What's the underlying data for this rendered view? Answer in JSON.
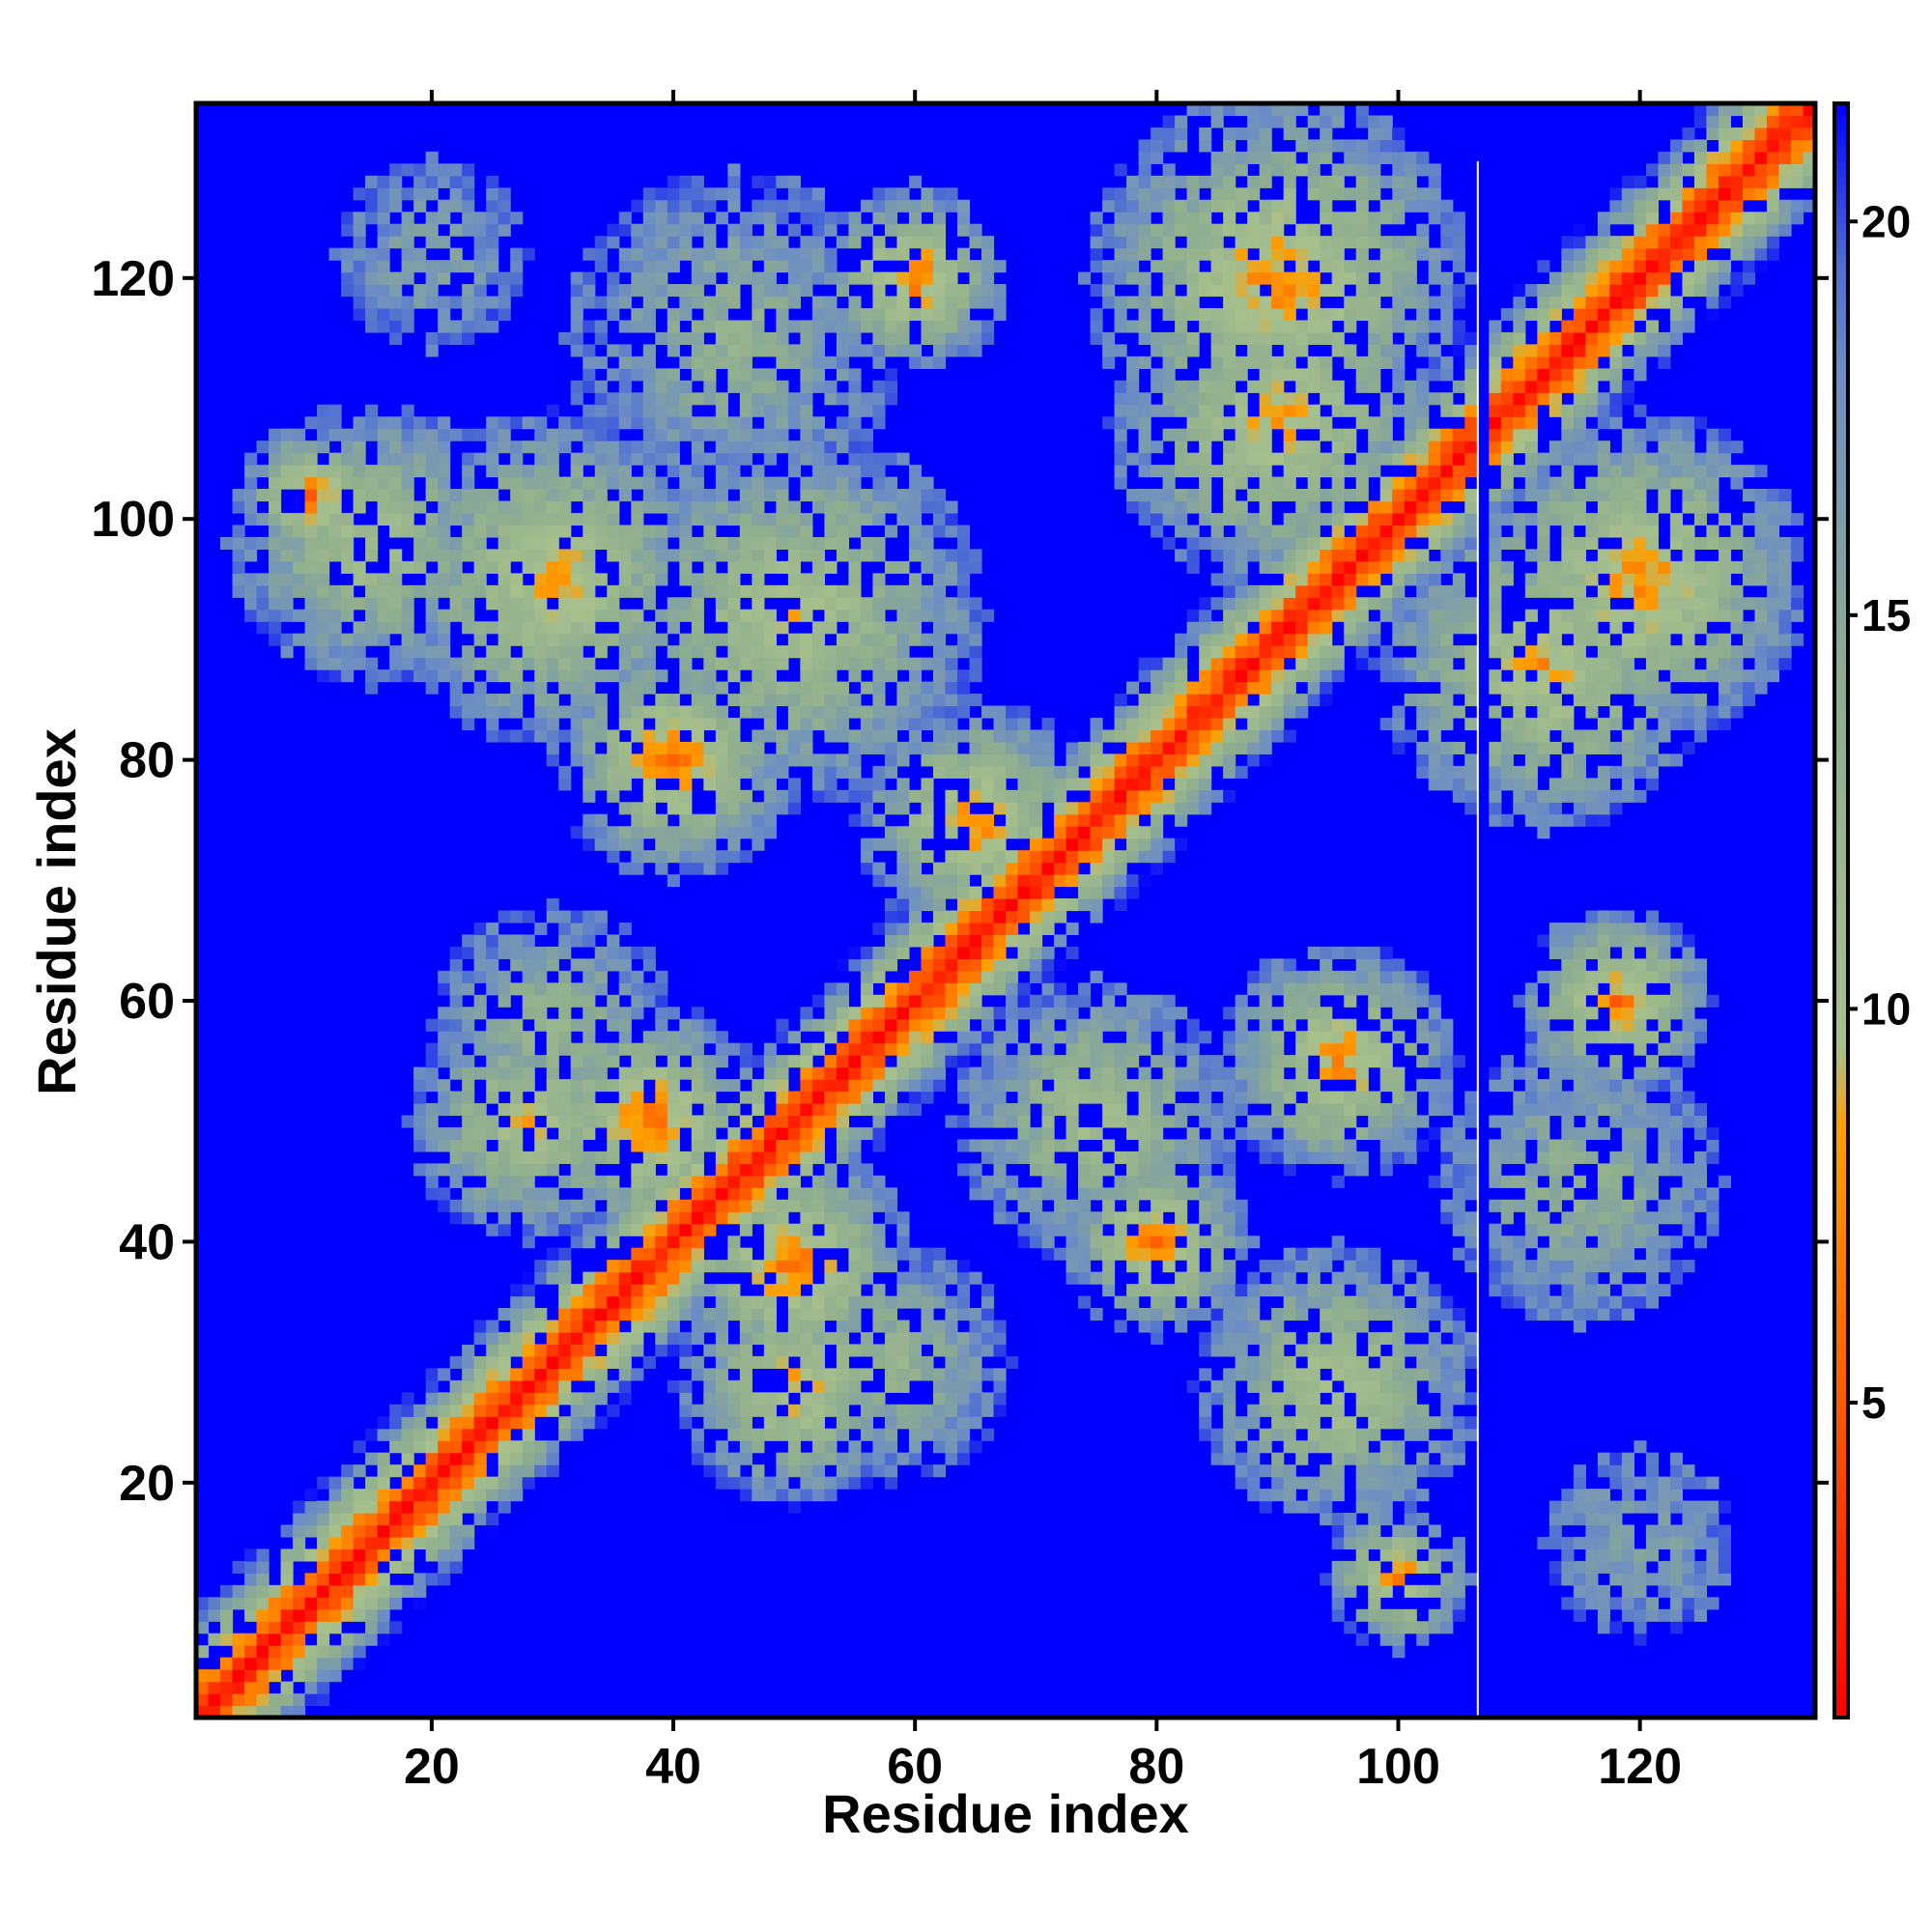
{
  "chart_data": {
    "type": "heatmap",
    "title": "",
    "xlabel": "Residue index",
    "ylabel": "Residue index",
    "xlim": [
      1,
      134
    ],
    "ylim": [
      1,
      134
    ],
    "x_ticks": [
      "20",
      "40",
      "60",
      "80",
      "100",
      "120"
    ],
    "y_ticks": [
      "20",
      "40",
      "60",
      "80",
      "100",
      "120"
    ],
    "colorbar": {
      "range": [
        1,
        21.5
      ],
      "ticks": [
        "5",
        "10",
        "15",
        "20"
      ],
      "stops": [
        {
          "value": 1,
          "color": "#ff0000"
        },
        {
          "value": 5,
          "color": "#ff5a00"
        },
        {
          "value": 8.5,
          "color": "#ff9f00"
        },
        {
          "value": 9.5,
          "color": "#a7c08c"
        },
        {
          "value": 14,
          "color": "#8fae8f"
        },
        {
          "value": 18,
          "color": "#6e8fc2"
        },
        {
          "value": 19.5,
          "color": "#4c6cd4"
        },
        {
          "value": 21.5,
          "color": "#0000ff"
        }
      ]
    },
    "diagonal_band": {
      "value_at_diagonal": 1.5,
      "increase_per_residue": 2.2
    },
    "background_value": 21.5,
    "contact_regions": [
      {
        "i": 10,
        "j": 102,
        "min_value": 6,
        "radius": 6
      },
      {
        "i": 15,
        "j": 98,
        "min_value": 10,
        "radius": 12
      },
      {
        "i": 30,
        "j": 95,
        "min_value": 8,
        "radius": 14
      },
      {
        "i": 40,
        "j": 80,
        "min_value": 6,
        "radius": 10
      },
      {
        "i": 50,
        "j": 92,
        "min_value": 9,
        "radius": 16
      },
      {
        "i": 60,
        "j": 120,
        "min_value": 6,
        "radius": 8
      },
      {
        "i": 45,
        "j": 115,
        "min_value": 13,
        "radius": 14
      },
      {
        "i": 20,
        "j": 122,
        "min_value": 15,
        "radius": 8
      },
      {
        "i": 38,
        "j": 50,
        "min_value": 6,
        "radius": 10
      },
      {
        "i": 30,
        "j": 58,
        "min_value": 12,
        "radius": 10
      },
      {
        "i": 28,
        "j": 50,
        "min_value": 9,
        "radius": 10
      },
      {
        "i": 65,
        "j": 75,
        "min_value": 7,
        "radius": 10
      },
      {
        "i": 80,
        "j": 40,
        "min_value": 6,
        "radius": 8
      },
      {
        "i": 75,
        "j": 50,
        "min_value": 10,
        "radius": 12
      },
      {
        "i": 95,
        "j": 55,
        "min_value": 7,
        "radius": 10
      },
      {
        "i": 95,
        "j": 28,
        "min_value": 9,
        "radius": 12
      },
      {
        "i": 100,
        "j": 12,
        "min_value": 6,
        "radius": 6
      },
      {
        "i": 118,
        "j": 60,
        "min_value": 6,
        "radius": 8
      },
      {
        "i": 115,
        "j": 45,
        "min_value": 13,
        "radius": 12
      },
      {
        "i": 120,
        "j": 15,
        "min_value": 15,
        "radius": 8
      },
      {
        "i": 50,
        "j": 38,
        "min_value": 6,
        "radius": 10
      },
      {
        "i": 58,
        "j": 30,
        "min_value": 12,
        "radius": 10
      },
      {
        "i": 50,
        "j": 28,
        "min_value": 8,
        "radius": 10
      },
      {
        "i": 90,
        "j": 120,
        "min_value": 7,
        "radius": 16
      },
      {
        "i": 120,
        "j": 95,
        "min_value": 7,
        "radius": 14
      },
      {
        "i": 90,
        "j": 108,
        "min_value": 8,
        "radius": 14
      },
      {
        "i": 112,
        "j": 88,
        "min_value": 8,
        "radius": 14
      }
    ],
    "gap_column": 107
  }
}
